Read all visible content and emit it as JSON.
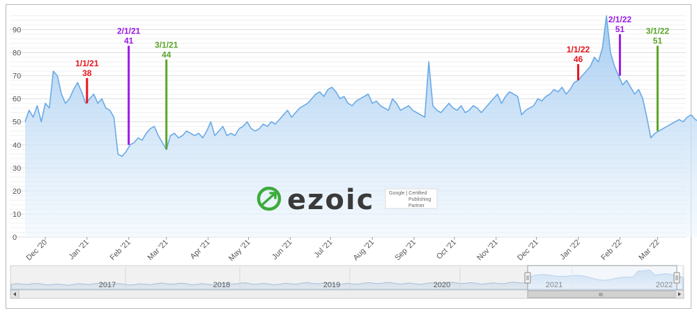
{
  "chart_data": {
    "type": "area",
    "y_ticks": [
      "0",
      "10",
      "20",
      "30",
      "40",
      "50",
      "60",
      "70",
      "80",
      "90"
    ],
    "ylim": [
      0,
      98
    ],
    "grid": true,
    "x_tick_labels": [
      "Dec '20",
      "Jan '21",
      "Feb '21",
      "Mar '21",
      "Apr '21",
      "May '21",
      "Jun '21",
      "Jul '21",
      "Aug '21",
      "Sep '21",
      "Oct '21",
      "Nov '21",
      "Dec '21",
      "Jan '22",
      "Feb '22",
      "Mar '22"
    ],
    "series": [
      {
        "x_start": "2020-11-16",
        "step_days": 3,
        "values": [
          50,
          55,
          52,
          57,
          50,
          58,
          56,
          72,
          70,
          62,
          58,
          60,
          64,
          67,
          63,
          58,
          60,
          62,
          58,
          60,
          56,
          55,
          52,
          36,
          35,
          37,
          40,
          41,
          43,
          42,
          45,
          47,
          48,
          44,
          41,
          38,
          44,
          45,
          43,
          44,
          46,
          45,
          44,
          45,
          43,
          46,
          50,
          44,
          46,
          48,
          44,
          45,
          44,
          47,
          48,
          50,
          47,
          46,
          47,
          49,
          48,
          50,
          49,
          51,
          53,
          55,
          52,
          54,
          56,
          57,
          58,
          60,
          62,
          63,
          61,
          64,
          65,
          63,
          60,
          61,
          58,
          57,
          59,
          60,
          61,
          62,
          58,
          59,
          57,
          56,
          55,
          60,
          58,
          55,
          56,
          57,
          55,
          54,
          53,
          52,
          76,
          57,
          55,
          54,
          56,
          58,
          56,
          55,
          57,
          54,
          55,
          57,
          56,
          54,
          56,
          58,
          60,
          62,
          58,
          61,
          63,
          62,
          61,
          53,
          55,
          56,
          57,
          60,
          59,
          61,
          62,
          64,
          63,
          65,
          62,
          64,
          67,
          68,
          70,
          72,
          74,
          78,
          76,
          82,
          96,
          80,
          74,
          70,
          66,
          68,
          65,
          62,
          64,
          60,
          52,
          43,
          45,
          46,
          47,
          48,
          49,
          50,
          51,
          50,
          52,
          53,
          51,
          50,
          52,
          51,
          53,
          55,
          56,
          57,
          55,
          54,
          56,
          55,
          53,
          54,
          52,
          51,
          53,
          55,
          54
        ]
      }
    ],
    "annotations": [
      {
        "date": "1/1/21",
        "value": "38",
        "color": "#e8141c",
        "x_date": "2021-01-01",
        "y_top": 69
      },
      {
        "date": "2/1/21",
        "value": "41",
        "color": "#9b19e6",
        "x_date": "2021-02-01",
        "y_top": 83
      },
      {
        "date": "3/1/21",
        "value": "44",
        "color": "#5aa629",
        "x_date": "2021-03-01",
        "y_top": 77
      },
      {
        "date": "1/1/22",
        "value": "46",
        "color": "#e8141c",
        "x_date": "2022-01-01",
        "y_top": 75
      },
      {
        "date": "2/1/22",
        "value": "51",
        "color": "#9b19e6",
        "x_date": "2022-02-01",
        "y_top": 88
      },
      {
        "date": "3/1/22",
        "value": "51",
        "color": "#5aa629",
        "x_date": "2022-03-01",
        "y_top": 83
      }
    ]
  },
  "navigator": {
    "years": [
      "2017",
      "2018",
      "2019",
      "2020",
      "2021",
      "2022"
    ],
    "scroll_thumb": "III"
  },
  "watermark": {
    "logo": "ezoic",
    "badge_line1": "Google | Certified",
    "badge_line2": "Publishing",
    "badge_line3": "Partner"
  },
  "colors": {
    "line": "#6aaae6",
    "fill_top": "#9ec8f0",
    "fill_bottom": "#eef6fd",
    "grid": "#e6e6e6",
    "logo_green": "#3cab3c"
  }
}
